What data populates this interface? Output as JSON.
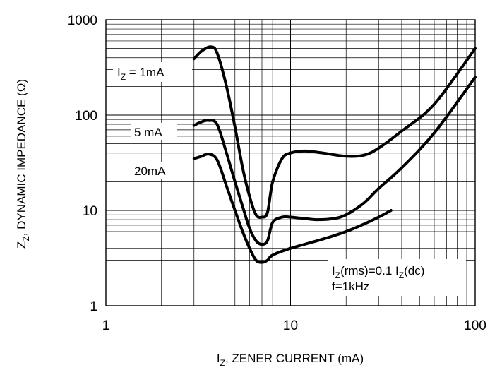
{
  "chart_data": {
    "type": "line",
    "title": "",
    "xscale": "log",
    "yscale": "log",
    "xlim": [
      1,
      100
    ],
    "ylim": [
      1,
      1000
    ],
    "grid": true,
    "x_ticks": [
      1,
      10,
      100
    ],
    "y_ticks": [
      1,
      10,
      100,
      1000
    ],
    "x_tick_labels": [
      "1",
      "10",
      "100"
    ],
    "y_tick_labels": [
      "1",
      "10",
      "100",
      "1000"
    ],
    "xlabel": {
      "main": "I",
      "sub": "Z",
      "rest": ", ZENER CURRENT (mA)"
    },
    "ylabel": {
      "main": "Z",
      "sub": "Z",
      "rest": ", DYNAMIC IMPEDANCE (Ω)"
    },
    "series": [
      {
        "label": {
          "main": "I",
          "sub": "Z",
          "rest": " = 1mA"
        },
        "points": [
          [
            3,
            390
          ],
          [
            3.3,
            470
          ],
          [
            3.7,
            520
          ],
          [
            4,
            450
          ],
          [
            4.5,
            200
          ],
          [
            5,
            75
          ],
          [
            5.5,
            28
          ],
          [
            6,
            14
          ],
          [
            6.5,
            9
          ],
          [
            7,
            8.5
          ],
          [
            7.5,
            9.5
          ],
          [
            8,
            20
          ],
          [
            9,
            35
          ],
          [
            10,
            40
          ],
          [
            12,
            42
          ],
          [
            15,
            40
          ],
          [
            20,
            37
          ],
          [
            25,
            38
          ],
          [
            30,
            45
          ],
          [
            40,
            68
          ],
          [
            60,
            130
          ],
          [
            100,
            500
          ]
        ]
      },
      {
        "label": {
          "main": "",
          "sub": "",
          "rest": "5 mA"
        },
        "points": [
          [
            3,
            78
          ],
          [
            3.3,
            85
          ],
          [
            3.6,
            88
          ],
          [
            4,
            80
          ],
          [
            4.5,
            40
          ],
          [
            5,
            20
          ],
          [
            5.5,
            11
          ],
          [
            6,
            6.5
          ],
          [
            6.5,
            4.8
          ],
          [
            7,
            4.4
          ],
          [
            7.5,
            4.8
          ],
          [
            8,
            7.5
          ],
          [
            9,
            8.5
          ],
          [
            10,
            8.5
          ],
          [
            12,
            8.2
          ],
          [
            14,
            8
          ],
          [
            17,
            8.2
          ],
          [
            20,
            9
          ],
          [
            25,
            12
          ],
          [
            30,
            17
          ],
          [
            40,
            28
          ],
          [
            60,
            65
          ],
          [
            100,
            250
          ]
        ]
      },
      {
        "label": {
          "main": "",
          "sub": "",
          "rest": "20mA"
        },
        "points": [
          [
            3,
            35
          ],
          [
            3.3,
            37
          ],
          [
            3.6,
            39
          ],
          [
            4,
            34
          ],
          [
            4.5,
            18
          ],
          [
            5,
            10
          ],
          [
            5.5,
            6
          ],
          [
            6,
            4
          ],
          [
            6.5,
            3
          ],
          [
            7,
            2.85
          ],
          [
            7.5,
            3
          ],
          [
            8,
            3.4
          ],
          [
            10,
            4
          ],
          [
            15,
            5
          ],
          [
            20,
            6
          ],
          [
            25,
            7.2
          ],
          [
            30,
            8.5
          ],
          [
            35,
            10
          ]
        ]
      }
    ],
    "annotation": {
      "line1": {
        "pre": "I",
        "sub1": "Z",
        "mid": "(rms)=0.1 I",
        "sub2": "Z",
        "post": "(dc)"
      },
      "line2": "f=1kHz"
    }
  }
}
